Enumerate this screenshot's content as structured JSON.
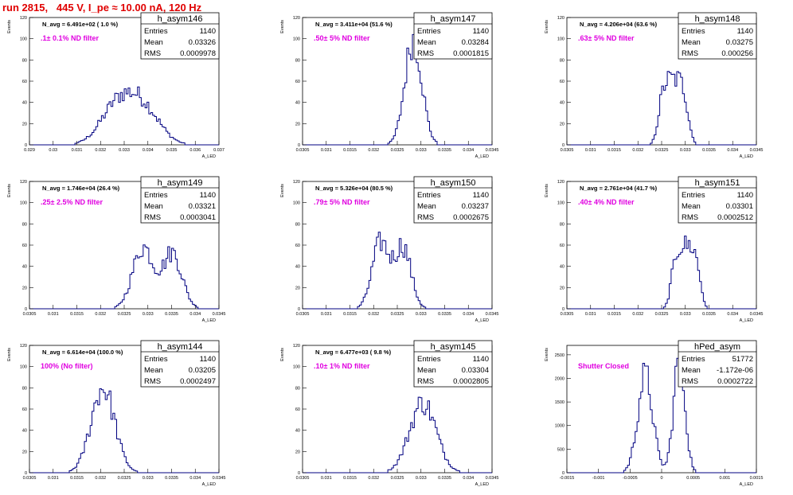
{
  "header": {
    "title": "run 2815,   445 V, I_pe ≈ 10.00 nA, 120 Hz"
  },
  "colors": {
    "title": "#e00000",
    "filter_label": "#e000e0",
    "histogram": "#000080",
    "axes": "#000000"
  },
  "chart_data": [
    {
      "type": "histogram",
      "name": "h_asym146",
      "ylabel": "Events",
      "xlabel": "A_LED",
      "xlim": [
        0.029,
        0.037
      ],
      "ylim": [
        0,
        120
      ],
      "xticks": [
        0.029,
        0.03,
        0.031,
        0.032,
        0.033,
        0.034,
        0.035,
        0.036,
        0.037
      ],
      "xtick_labels": [
        "0.029",
        "0.03",
        "0.031",
        "0.032",
        "0.033",
        "0.034",
        "0.035",
        "0.036",
        "0.037"
      ],
      "yticks": [
        0,
        20,
        40,
        60,
        80,
        100,
        120
      ],
      "navg": "N_avg = 6.491e+02 ( 1.0 %)",
      "filter": ".1± 0.1% ND filter",
      "stats": {
        "entries": "1140",
        "mean": "0.03326",
        "rms": "0.0009978"
      },
      "peaks": [
        {
          "mu": 0.0327,
          "sigma": 0.0007,
          "amp": 35
        },
        {
          "mu": 0.0338,
          "sigma": 0.0007,
          "amp": 33
        }
      ]
    },
    {
      "type": "histogram",
      "name": "h_asym147",
      "ylabel": "Events",
      "xlabel": "A_LED",
      "xlim": [
        0.0305,
        0.0345
      ],
      "ylim": [
        0,
        120
      ],
      "xticks": [
        0.0305,
        0.031,
        0.0315,
        0.032,
        0.0325,
        0.033,
        0.0335,
        0.034,
        0.0345
      ],
      "xtick_labels": [
        "0.0305",
        "0.031",
        "0.0315",
        "0.032",
        "0.0325",
        "0.033",
        "0.0335",
        "0.034",
        "0.0345"
      ],
      "yticks": [
        0,
        20,
        40,
        60,
        80,
        100,
        120
      ],
      "navg": "N_avg = 3.411e+04 (51.6 %)",
      "filter": ".50± 5% ND filter",
      "stats": {
        "entries": "1140",
        "mean": "0.03284",
        "rms": "0.0001815"
      },
      "peaks": [
        {
          "mu": 0.03284,
          "sigma": 0.00018,
          "amp": 100
        }
      ]
    },
    {
      "type": "histogram",
      "name": "h_asym148",
      "ylabel": "Events",
      "xlabel": "A_LED",
      "xlim": [
        0.0305,
        0.0345
      ],
      "ylim": [
        0,
        120
      ],
      "xticks": [
        0.0305,
        0.031,
        0.0315,
        0.032,
        0.0325,
        0.033,
        0.0335,
        0.034,
        0.0345
      ],
      "xtick_labels": [
        "0.0305",
        "0.031",
        "0.0315",
        "0.032",
        "0.0325",
        "0.033",
        "0.0335",
        "0.034",
        "0.0345"
      ],
      "yticks": [
        0,
        20,
        40,
        60,
        80,
        100,
        120
      ],
      "navg": "N_avg = 4.206e+04 (63.6 %)",
      "filter": ".63± 5% ND filter",
      "stats": {
        "entries": "1140",
        "mean": "0.03275",
        "rms": "0.000256"
      },
      "peaks": [
        {
          "mu": 0.03275,
          "sigma": 0.00026,
          "amp": 62,
          "flat": true
        }
      ]
    },
    {
      "type": "histogram",
      "name": "h_asym149",
      "ylabel": "Events",
      "xlabel": "A_LED",
      "xlim": [
        0.0305,
        0.0345
      ],
      "ylim": [
        0,
        120
      ],
      "xticks": [
        0.0305,
        0.031,
        0.0315,
        0.032,
        0.0325,
        0.033,
        0.0335,
        0.034,
        0.0345
      ],
      "xtick_labels": [
        "0.0305",
        "0.031",
        "0.0315",
        "0.032",
        "0.0325",
        "0.033",
        "0.0335",
        "0.034",
        "0.0345"
      ],
      "yticks": [
        0,
        20,
        40,
        60,
        80,
        100,
        120
      ],
      "navg": "N_avg = 1.746e+04 (26.4 %)",
      "filter": ".25± 2.5% ND filter",
      "stats": {
        "entries": "1140",
        "mean": "0.03321",
        "rms": "0.0003041"
      },
      "peaks": [
        {
          "mu": 0.0329,
          "sigma": 0.00022,
          "amp": 58
        },
        {
          "mu": 0.03352,
          "sigma": 0.0002,
          "amp": 52
        }
      ]
    },
    {
      "type": "histogram",
      "name": "h_asym150",
      "ylabel": "Events",
      "xlabel": "A_LED",
      "xlim": [
        0.0305,
        0.0345
      ],
      "ylim": [
        0,
        120
      ],
      "xticks": [
        0.0305,
        0.031,
        0.0315,
        0.032,
        0.0325,
        0.033,
        0.0335,
        0.034,
        0.0345
      ],
      "xtick_labels": [
        "0.0305",
        "0.031",
        "0.0315",
        "0.032",
        "0.0325",
        "0.033",
        "0.0335",
        "0.034",
        "0.0345"
      ],
      "yticks": [
        0,
        20,
        40,
        60,
        80,
        100,
        120
      ],
      "navg": "N_avg = 5.326e+04 (80.5 %)",
      "filter": ".79± 5% ND filter",
      "stats": {
        "entries": "1140",
        "mean": "0.03237",
        "rms": "0.0002675"
      },
      "peaks": [
        {
          "mu": 0.03215,
          "sigma": 0.00018,
          "amp": 62
        },
        {
          "mu": 0.03262,
          "sigma": 0.00017,
          "amp": 58
        }
      ]
    },
    {
      "type": "histogram",
      "name": "h_asym151",
      "ylabel": "Events",
      "xlabel": "A_LED",
      "xlim": [
        0.0305,
        0.0345
      ],
      "ylim": [
        0,
        120
      ],
      "xticks": [
        0.0305,
        0.031,
        0.0315,
        0.032,
        0.0325,
        0.033,
        0.0335,
        0.034,
        0.0345
      ],
      "xtick_labels": [
        "0.0305",
        "0.031",
        "0.0315",
        "0.032",
        "0.0325",
        "0.033",
        "0.0335",
        "0.034",
        "0.0345"
      ],
      "yticks": [
        0,
        20,
        40,
        60,
        80,
        100,
        120
      ],
      "navg": "N_avg = 2.761e+04 (41.7 %)",
      "filter": ".40± 4% ND filter",
      "stats": {
        "entries": "1140",
        "mean": "0.03301",
        "rms": "0.0002512"
      },
      "peaks": [
        {
          "mu": 0.03301,
          "sigma": 0.00025,
          "amp": 60,
          "flat": true
        }
      ]
    },
    {
      "type": "histogram",
      "name": "h_asym144",
      "ylabel": "Events",
      "xlabel": "A_LED",
      "xlim": [
        0.0305,
        0.0345
      ],
      "ylim": [
        0,
        120
      ],
      "xticks": [
        0.0305,
        0.031,
        0.0315,
        0.032,
        0.0325,
        0.033,
        0.0335,
        0.034,
        0.0345
      ],
      "xtick_labels": [
        "0.0305",
        "0.031",
        "0.0315",
        "0.032",
        "0.0325",
        "0.033",
        "0.0335",
        "0.034",
        "0.0345"
      ],
      "yticks": [
        0,
        20,
        40,
        60,
        80,
        100,
        120
      ],
      "navg": "N_avg = 6.614e+04 (100.0 %)",
      "filter": "100% (No filter)",
      "stats": {
        "entries": "1140",
        "mean": "0.03205",
        "rms": "0.0002497"
      },
      "peaks": [
        {
          "mu": 0.03205,
          "sigma": 0.00025,
          "amp": 80
        }
      ]
    },
    {
      "type": "histogram",
      "name": "h_asym145",
      "ylabel": "Events",
      "xlabel": "A_LED",
      "xlim": [
        0.0305,
        0.0345
      ],
      "ylim": [
        0,
        120
      ],
      "xticks": [
        0.0305,
        0.031,
        0.0315,
        0.032,
        0.0325,
        0.033,
        0.0335,
        0.034,
        0.0345
      ],
      "xtick_labels": [
        "0.0305",
        "0.031",
        "0.0315",
        "0.032",
        "0.0325",
        "0.033",
        "0.0335",
        "0.034",
        "0.0345"
      ],
      "yticks": [
        0,
        20,
        40,
        60,
        80,
        100,
        120
      ],
      "navg": "N_avg = 6.477e+03 ( 9.8 %)",
      "filter": ".10± 1% ND filter",
      "stats": {
        "entries": "1140",
        "mean": "0.03304",
        "rms": "0.0002805"
      },
      "peaks": [
        {
          "mu": 0.03304,
          "sigma": 0.00028,
          "amp": 66
        }
      ]
    },
    {
      "type": "histogram",
      "name": "hPed_asym",
      "ylabel": "Events",
      "xlabel": "A_LED",
      "xlim": [
        -0.0015,
        0.0015
      ],
      "ylim": [
        0,
        2700
      ],
      "xticks": [
        -0.0015,
        -0.001,
        -0.0005,
        0,
        0.0005,
        0.001,
        0.0015
      ],
      "xtick_labels": [
        "-0.0015",
        "-0.001",
        "-0.0005",
        "0",
        "0.0005",
        "0.001",
        "0.0015"
      ],
      "yticks": [
        0,
        500,
        1000,
        1500,
        2000,
        2500
      ],
      "navg": "",
      "filter": "Shutter Closed",
      "stats": {
        "entries": "51772",
        "mean": "-1.172e-06",
        "rms": "0.0002722"
      },
      "peaks": [
        {
          "mu": -0.00026,
          "sigma": 0.00012,
          "amp": 2050
        },
        {
          "mu": 0.00028,
          "sigma": 9e-05,
          "amp": 2450
        }
      ]
    }
  ]
}
